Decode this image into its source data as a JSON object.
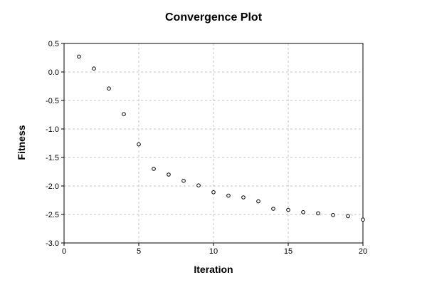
{
  "chart_data": {
    "type": "scatter",
    "title": "Convergence Plot",
    "xlabel": "Iteration",
    "ylabel": "Fitness",
    "xlim": [
      0,
      20
    ],
    "ylim": [
      -3.0,
      0.5
    ],
    "xticks": [
      0,
      5,
      10,
      15,
      20
    ],
    "xtick_labels": [
      "0",
      "5",
      "10",
      "15",
      "20"
    ],
    "yticks": [
      0.5,
      0.0,
      -0.5,
      -1.0,
      -1.5,
      -2.0,
      -2.5,
      -3.0
    ],
    "ytick_labels": [
      "0.5",
      "0.0",
      "-0.5",
      "-1.0",
      "-1.5",
      "-2.0",
      "-2.5",
      "-3.0"
    ],
    "grid": true,
    "marker": "open-circle",
    "marker_color": "#000000",
    "x": [
      1,
      2,
      3,
      4,
      5,
      6,
      7,
      8,
      9,
      10,
      11,
      12,
      13,
      14,
      15,
      16,
      17,
      18,
      19,
      20
    ],
    "y": [
      0.27,
      0.06,
      -0.29,
      -0.74,
      -1.27,
      -1.7,
      -1.8,
      -1.91,
      -1.99,
      -2.11,
      -2.17,
      -2.2,
      -2.27,
      -2.4,
      -2.42,
      -2.46,
      -2.48,
      -2.51,
      -2.53,
      -2.59
    ]
  }
}
